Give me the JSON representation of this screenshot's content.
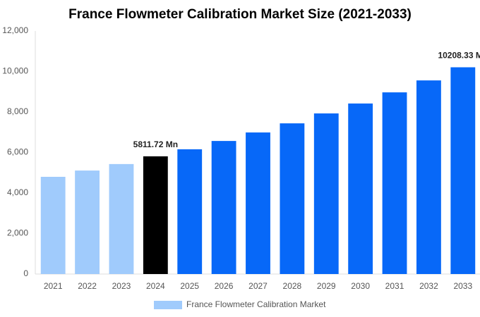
{
  "chart_data": {
    "type": "bar",
    "title": "France Flowmeter Calibration Market Size (2021-2033)",
    "categories": [
      "2021",
      "2022",
      "2023",
      "2024",
      "2025",
      "2026",
      "2027",
      "2028",
      "2029",
      "2030",
      "2031",
      "2032",
      "2033"
    ],
    "series": [
      {
        "name": "France Flowmeter Calibration Market",
        "color": "#a0cbfc",
        "values": [
          4800,
          5110,
          5430,
          5811.72,
          6160,
          6570,
          6990,
          7440,
          7930,
          8420,
          8970,
          9560,
          10208.33
        ],
        "value_labels": [
          null,
          null,
          null,
          "5811.72 Mn",
          null,
          null,
          null,
          null,
          null,
          null,
          null,
          null,
          "10208.33 Mn"
        ],
        "colors": [
          "#a0cbfc",
          "#a0cbfc",
          "#a0cbfc",
          "#000000",
          "#0768f8",
          "#0768f8",
          "#0768f8",
          "#0768f8",
          "#0768f8",
          "#0768f8",
          "#0768f8",
          "#0768f8",
          "#0768f8"
        ]
      }
    ],
    "ylim": [
      0,
      12000
    ],
    "yticks": [
      0,
      {
        "value": 2000,
        "label": "2,000"
      },
      {
        "value": 4000,
        "label": "4,000"
      },
      {
        "value": 6000,
        "label": "6,000"
      },
      {
        "value": 8000,
        "label": "8,000"
      },
      {
        "value": 10000,
        "label": "10,000"
      },
      {
        "value": 12000,
        "label": "12,000"
      }
    ],
    "grid": false
  }
}
